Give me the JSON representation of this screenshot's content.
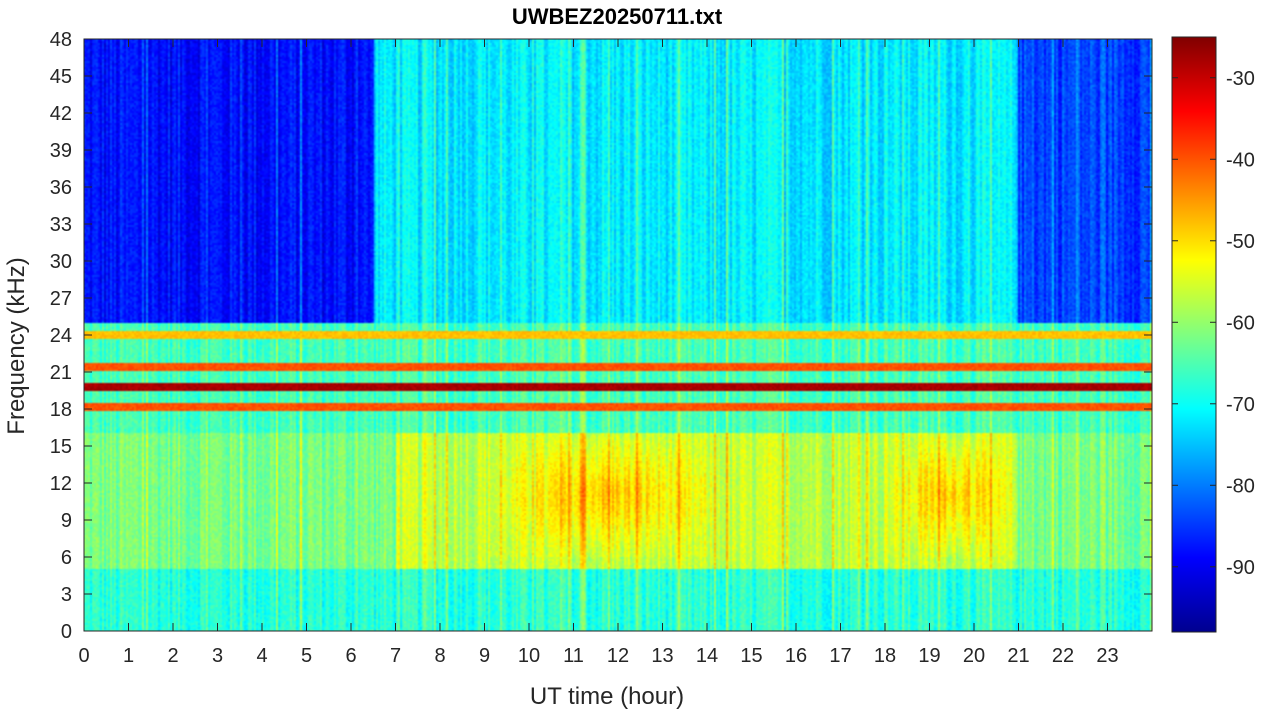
{
  "chart_data": {
    "type": "heatmap",
    "title": "UWBEZ20250711.txt",
    "xlabel": "UT time (hour)",
    "ylabel": "Frequency (kHz)",
    "xlim": [
      0,
      24
    ],
    "ylim": [
      0,
      48
    ],
    "x_ticks": [
      "0",
      "1",
      "2",
      "3",
      "4",
      "5",
      "6",
      "7",
      "8",
      "9",
      "10",
      "11",
      "12",
      "13",
      "14",
      "15",
      "16",
      "17",
      "18",
      "19",
      "20",
      "21",
      "22",
      "23"
    ],
    "y_ticks": [
      "0",
      "3",
      "6",
      "9",
      "12",
      "15",
      "18",
      "21",
      "24",
      "27",
      "30",
      "33",
      "36",
      "39",
      "42",
      "45",
      "48"
    ],
    "colorbar": {
      "colormap": "jet",
      "range": [
        -98,
        -25
      ],
      "ticks": [
        "-30",
        "-40",
        "-50",
        "-60",
        "-70",
        "-80",
        "-90"
      ]
    },
    "persistent_bands_khz": [
      {
        "freq": 19.8,
        "level_db": -28
      },
      {
        "freq": 21.4,
        "level_db": -40
      },
      {
        "freq": 18.2,
        "level_db": -40
      },
      {
        "freq": 24.0,
        "level_db": -48
      }
    ],
    "intense_emission_regions": [
      {
        "hours": [
          9,
          14.5
        ],
        "freq_khz": [
          6,
          16
        ],
        "level_db": -48
      },
      {
        "hours": [
          18,
          21
        ],
        "freq_khz": [
          6,
          16
        ],
        "level_db": -48
      }
    ],
    "quiet_regions": [
      {
        "hours": [
          0,
          6.5
        ],
        "freq_khz": [
          25,
          48
        ],
        "level_db": -88
      },
      {
        "hours": [
          21,
          24
        ],
        "freq_khz": [
          25,
          48
        ],
        "level_db": -84
      }
    ]
  }
}
